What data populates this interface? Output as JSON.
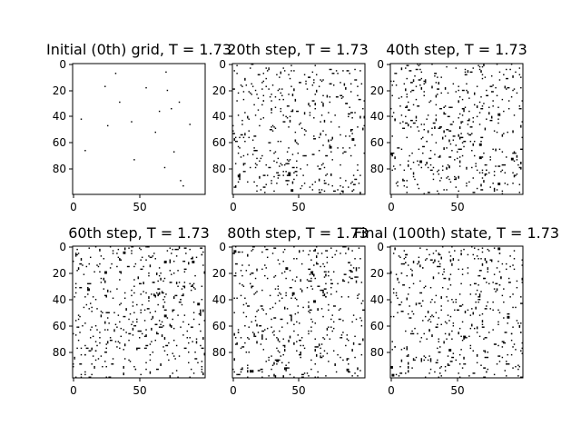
{
  "chart_data": [
    {
      "type": "heatmap",
      "title": "Initial (0th) grid, T = 1.73",
      "xticks": [
        "0",
        "50"
      ],
      "yticks": [
        "0",
        "20",
        "40",
        "60",
        "80"
      ],
      "grid_size": 100,
      "colormap": "binary",
      "density_of_black_cells": 0.002
    },
    {
      "type": "heatmap",
      "title": "20th step, T = 1.73",
      "xticks": [
        "0",
        "50"
      ],
      "yticks": [
        "0",
        "20",
        "40",
        "60",
        "80"
      ],
      "grid_size": 100,
      "colormap": "binary",
      "density_of_black_cells": 0.04
    },
    {
      "type": "heatmap",
      "title": "40th step, T = 1.73",
      "xticks": [
        "0",
        "50"
      ],
      "yticks": [
        "0",
        "20",
        "40",
        "60",
        "80"
      ],
      "grid_size": 100,
      "colormap": "binary",
      "density_of_black_cells": 0.045
    },
    {
      "type": "heatmap",
      "title": "60th step, T = 1.73",
      "xticks": [
        "0",
        "50"
      ],
      "yticks": [
        "0",
        "20",
        "40",
        "60",
        "80"
      ],
      "grid_size": 100,
      "colormap": "binary",
      "density_of_black_cells": 0.045
    },
    {
      "type": "heatmap",
      "title": "80th step, T = 1.73",
      "xticks": [
        "0",
        "50"
      ],
      "yticks": [
        "0",
        "20",
        "40",
        "60",
        "80"
      ],
      "grid_size": 100,
      "colormap": "binary",
      "density_of_black_cells": 0.045
    },
    {
      "type": "heatmap",
      "title": "Final (100th) state, T = 1.73",
      "xticks": [
        "0",
        "50"
      ],
      "yticks": [
        "0",
        "20",
        "40",
        "60",
        "80"
      ],
      "grid_size": 100,
      "colormap": "binary",
      "density_of_black_cells": 0.045
    }
  ],
  "colors": {
    "spin_down": "#000000",
    "spin_up": "#ffffff",
    "axis": "#000000"
  }
}
